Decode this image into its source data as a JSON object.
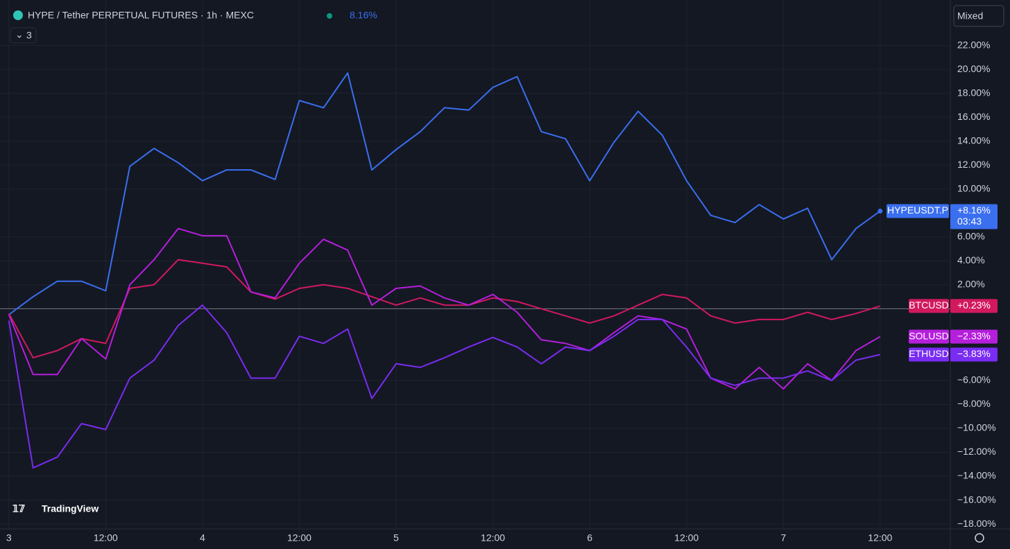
{
  "header": {
    "symbol": "HYPE / Tether PERPETUAL FUTURES · 1h · MEXC",
    "change": "8.16%",
    "indicator_count": "3",
    "scale_mode": "Mixed",
    "logo": "TradingView"
  },
  "chart_data": {
    "type": "line",
    "x": [
      0,
      3,
      6,
      9,
      12,
      15,
      18,
      21,
      24,
      27,
      30,
      33,
      36,
      39,
      42,
      45,
      48,
      51,
      54,
      57,
      60,
      63,
      66,
      69,
      72,
      75,
      78,
      81,
      84,
      87,
      90,
      93,
      96,
      99,
      102,
      105,
      108
    ],
    "xlim": [
      -1.1,
      116.7
    ],
    "xticks": [
      {
        "value": 0,
        "label": "3"
      },
      {
        "value": 12,
        "label": "12:00"
      },
      {
        "value": 24,
        "label": "4"
      },
      {
        "value": 36,
        "label": "12:00"
      },
      {
        "value": 48,
        "label": "5"
      },
      {
        "value": 60,
        "label": "12:00"
      },
      {
        "value": 72,
        "label": "6"
      },
      {
        "value": 84,
        "label": "12:00"
      },
      {
        "value": 96,
        "label": "7"
      },
      {
        "value": 108,
        "label": "12:00"
      }
    ],
    "ylim": [
      -18.4,
      25.8
    ],
    "yticks": [
      {
        "value": 22,
        "label": "22.00%"
      },
      {
        "value": 20,
        "label": "20.00%"
      },
      {
        "value": 18,
        "label": "18.00%"
      },
      {
        "value": 16,
        "label": "16.00%"
      },
      {
        "value": 14,
        "label": "14.00%"
      },
      {
        "value": 12,
        "label": "12.00%"
      },
      {
        "value": 10,
        "label": "10.00%"
      },
      {
        "value": 6,
        "label": "6.00%"
      },
      {
        "value": 4,
        "label": "4.00%"
      },
      {
        "value": 2,
        "label": "2.00%"
      },
      {
        "value": -6,
        "label": "−6.00%"
      },
      {
        "value": -8,
        "label": "−8.00%"
      },
      {
        "value": -10,
        "label": "−10.00%"
      },
      {
        "value": -12,
        "label": "−12.00%"
      },
      {
        "value": -14,
        "label": "−14.00%"
      },
      {
        "value": -16,
        "label": "−16.00%"
      },
      {
        "value": -18,
        "label": "−18.00%"
      }
    ],
    "grid": true,
    "series": [
      {
        "name": "HYPEUSDT.P",
        "color": "#3a6ff0",
        "last_label": "+8.16%",
        "countdown": "03:43",
        "values": [
          -0.5,
          1,
          2.3,
          2.3,
          1.5,
          11.9,
          13.4,
          12.2,
          10.7,
          11.6,
          11.6,
          10.8,
          17.4,
          16.8,
          19.7,
          11.6,
          13.3,
          14.8,
          16.8,
          16.6,
          18.5,
          19.4,
          14.8,
          14.2,
          10.7,
          13.9,
          16.5,
          14.5,
          10.7,
          7.8,
          7.2,
          8.7,
          7.5,
          8.4,
          4.1,
          6.7,
          8.16
        ]
      },
      {
        "name": "BTCUSD",
        "color": "#d2195e",
        "last_label": "+0.23%",
        "values": [
          -0.4,
          -4.1,
          -3.5,
          -2.5,
          -2.9,
          1.7,
          2.0,
          4.1,
          3.8,
          3.5,
          1.4,
          0.8,
          1.7,
          2.0,
          1.7,
          1.0,
          0.3,
          0.9,
          0.3,
          0.3,
          0.9,
          0.6,
          0,
          -0.6,
          -1.2,
          -0.6,
          0.3,
          1.2,
          0.9,
          -0.6,
          -1.2,
          -0.9,
          -0.9,
          -0.3,
          -0.9,
          -0.4,
          0.23
        ]
      },
      {
        "name": "SOLUSD",
        "color": "#b51fdc",
        "last_label": "−2.33%",
        "values": [
          -0.5,
          -5.5,
          -5.5,
          -2.5,
          -4.2,
          2.0,
          4.1,
          6.7,
          6.1,
          6.1,
          1.4,
          0.9,
          3.8,
          5.8,
          4.9,
          0.3,
          1.7,
          1.9,
          0.9,
          0.3,
          1.2,
          -0.3,
          -2.6,
          -2.9,
          -3.5,
          -2.0,
          -0.6,
          -0.9,
          -1.7,
          -5.8,
          -6.7,
          -4.9,
          -6.7,
          -4.6,
          -6.0,
          -3.5,
          -2.33
        ]
      },
      {
        "name": "ETHUSD",
        "color": "#7a2cf2",
        "last_label": "−3.83%",
        "values": [
          -1,
          -13.3,
          -12.4,
          -9.6,
          -10.1,
          -5.8,
          -4.3,
          -1.4,
          0.3,
          -2.0,
          -5.8,
          -5.8,
          -2.3,
          -2.9,
          -1.7,
          -7.5,
          -4.6,
          -4.9,
          -4.1,
          -3.2,
          -2.4,
          -3.2,
          -4.6,
          -3.2,
          -3.5,
          -2.3,
          -0.9,
          -0.9,
          -3.2,
          -5.8,
          -6.4,
          -5.8,
          -5.8,
          -5.2,
          -6.0,
          -4.3,
          -3.83
        ]
      }
    ]
  }
}
